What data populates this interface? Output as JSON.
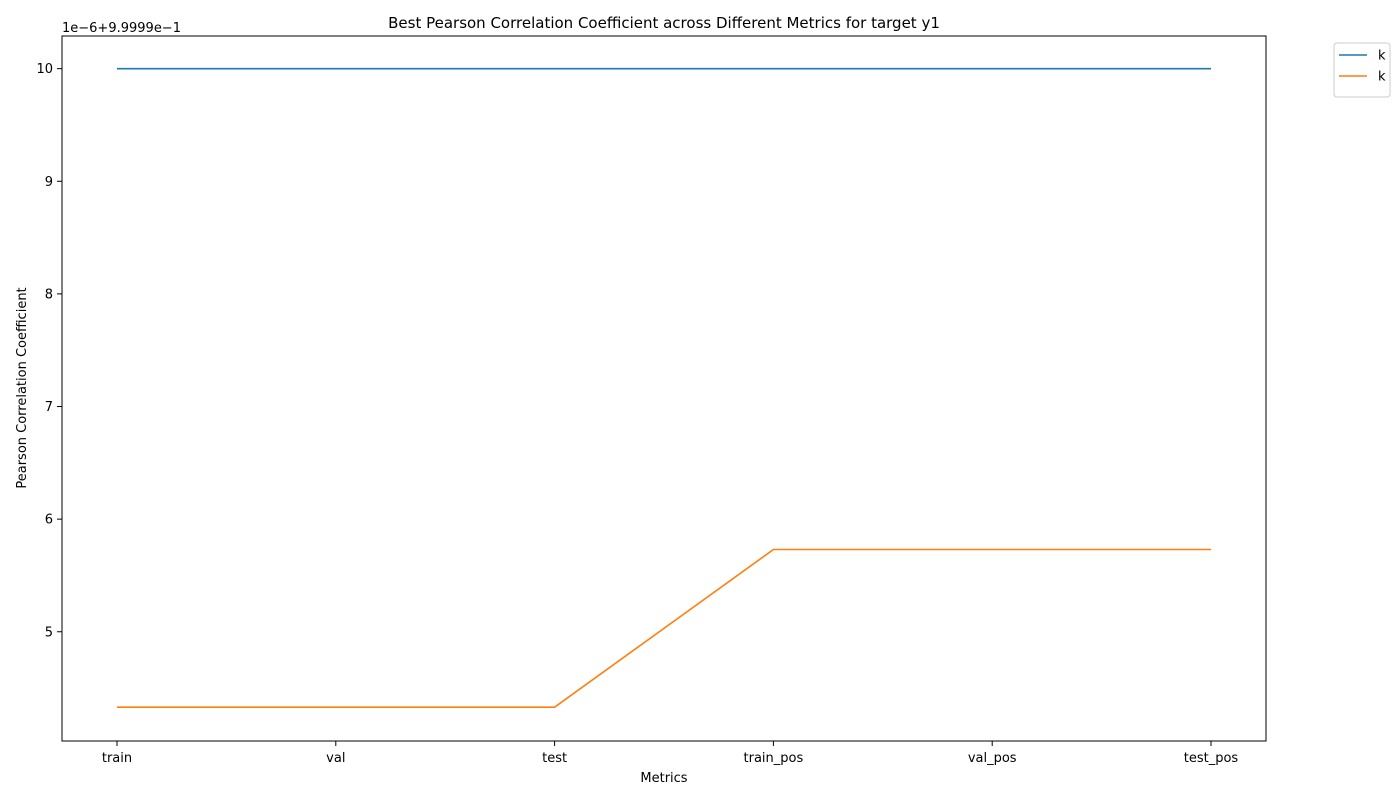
{
  "chart_data": {
    "type": "line",
    "title": "Best Pearson Correlation Coefficient across Different Metrics for target y1",
    "xlabel": "Metrics",
    "ylabel": "Pearson Correlation Coefficient",
    "y_offset_text": "1e−6+9.9999e−1",
    "categories": [
      "train",
      "val",
      "test",
      "train_pos",
      "val_pos",
      "test_pos"
    ],
    "y_ticks": [
      5,
      6,
      7,
      8,
      9,
      10
    ],
    "ylim": [
      4.03,
      10.29
    ],
    "grid": false,
    "legend_position": "outside-top-right",
    "series": [
      {
        "name": "k",
        "color": "#1f77b4",
        "values": [
          10.0,
          10.0,
          10.0,
          10.0,
          10.0,
          10.0
        ]
      },
      {
        "name": "k",
        "color": "#ff7f0e",
        "values": [
          4.33,
          4.33,
          4.33,
          5.73,
          5.73,
          5.73
        ]
      }
    ]
  }
}
